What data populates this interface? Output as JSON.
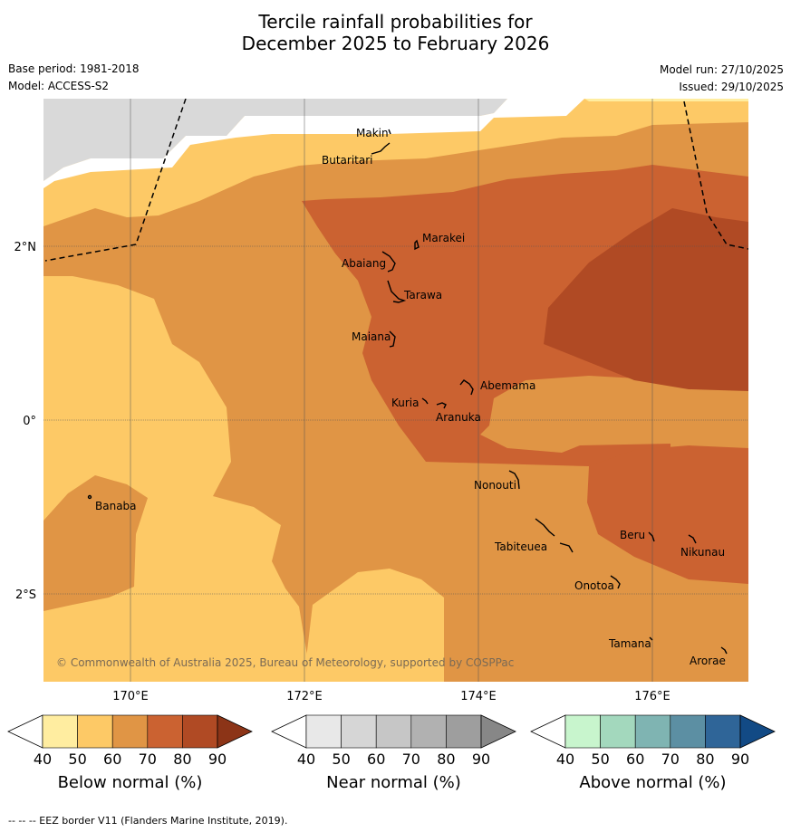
{
  "title": {
    "line1": "Tercile rainfall probabilities for",
    "line2": "December 2025 to February 2026"
  },
  "meta": {
    "base_period": "Base period: 1981-2018",
    "model": "Model: ACCESS-S2",
    "model_run": "Model run: 27/10/2025",
    "issued": "Issued: 29/10/2025"
  },
  "map": {
    "copyright": "© Commonwealth of Australia 2025, Bureau of Meteorology, supported by COSPPac",
    "lon_ticks": [
      "170°E",
      "172°E",
      "174°E",
      "176°E"
    ],
    "lat_ticks": [
      "2°N",
      "0°",
      "2°S"
    ],
    "places": [
      "Makin",
      "Butaritari",
      "Marakei",
      "Abaiang",
      "Tarawa",
      "Maiana",
      "Abemama",
      "Kuria",
      "Aranuka",
      "Nonouti",
      "Banaba",
      "Tabiteuea",
      "Beru",
      "Nikunau",
      "Onotoa",
      "Tamana",
      "Arorae"
    ]
  },
  "colorbars": [
    {
      "label": "Below normal (%)",
      "ticks": [
        "40",
        "50",
        "60",
        "70",
        "80",
        "90"
      ],
      "colors": [
        "#ffeda0",
        "#fdc966",
        "#e09545",
        "#cb6231",
        "#b04a24",
        "#8c3417"
      ]
    },
    {
      "label": "Near normal (%)",
      "ticks": [
        "40",
        "50",
        "60",
        "70",
        "80",
        "90"
      ],
      "colors": [
        "#e8e8e8",
        "#d6d6d6",
        "#c6c6c6",
        "#b1b1b1",
        "#9e9e9e",
        "#878787"
      ]
    },
    {
      "label": "Above normal (%)",
      "ticks": [
        "40",
        "50",
        "60",
        "70",
        "80",
        "90"
      ],
      "colors": [
        "#c8f5cd",
        "#a3d8bd",
        "#7fb4b2",
        "#5c8fa3",
        "#2f6598",
        "#124a85"
      ]
    }
  ],
  "footer": "--  --  -- EEZ border V11 (Flanders Marine Institute, 2019)."
}
